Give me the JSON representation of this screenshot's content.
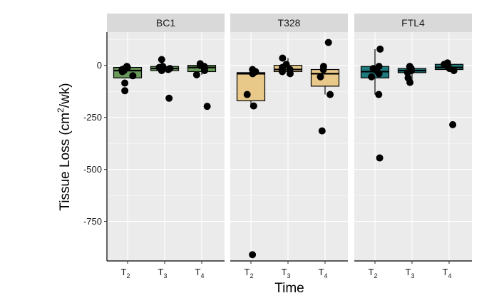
{
  "chart_data": {
    "type": "boxplot",
    "xlabel": "Time",
    "ylabel_main": "Tissue Loss (cm",
    "ylabel_sup": "2",
    "ylabel_tail": "/wk)",
    "ylim": [
      -940,
      160
    ],
    "yticks": [
      0,
      -250,
      -500,
      -750
    ],
    "ytick_labels": [
      "0",
      "-250",
      "-500",
      "-750"
    ],
    "categories": [
      {
        "base": "T",
        "sub": "2"
      },
      {
        "base": "T",
        "sub": "3"
      },
      {
        "base": "T",
        "sub": "4"
      }
    ],
    "panels": [
      {
        "name": "BC1",
        "color": "#6a9a5a",
        "boxes": [
          {
            "q1": -60,
            "median": -25,
            "q3": -10,
            "low": -60,
            "high": -5,
            "points": [
              -5,
              -10,
              -15,
              -20,
              -25,
              -30,
              -50,
              -85,
              -122
            ]
          },
          {
            "q1": -25,
            "median": -15,
            "q3": -5,
            "low": -25,
            "high": 0,
            "points": [
              28,
              -5,
              -10,
              -15,
              -20,
              -25,
              -158
            ]
          },
          {
            "q1": -30,
            "median": -10,
            "q3": 0,
            "low": -45,
            "high": 10,
            "points": [
              8,
              0,
              -5,
              -15,
              -25,
              -45,
              -197
            ]
          }
        ]
      },
      {
        "name": "T328",
        "color": "#e8c98a",
        "boxes": [
          {
            "q1": -170,
            "median": -40,
            "q3": -35,
            "low": -195,
            "high": -20,
            "points": [
              -20,
              -30,
              -40,
              -140,
              -195,
              -910
            ]
          },
          {
            "q1": -30,
            "median": -20,
            "q3": 0,
            "low": -40,
            "high": 35,
            "points": [
              35,
              5,
              -10,
              -20,
              -30,
              -40
            ]
          },
          {
            "q1": -100,
            "median": -40,
            "q3": -20,
            "low": -140,
            "high": -5,
            "points": [
              110,
              -5,
              -20,
              -55,
              -140,
              -315
            ]
          }
        ]
      },
      {
        "name": "FTL4",
        "color": "#1f7a7d",
        "boxes": [
          {
            "q1": -60,
            "median": -30,
            "q3": -5,
            "low": -140,
            "high": 78,
            "points": [
              78,
              -5,
              -15,
              -25,
              -40,
              -55,
              -140,
              -445
            ]
          },
          {
            "q1": -35,
            "median": -25,
            "q3": -15,
            "low": -82,
            "high": -5,
            "points": [
              -5,
              -15,
              -25,
              -35,
              -60,
              -82
            ]
          },
          {
            "q1": -20,
            "median": -10,
            "q3": 5,
            "low": -25,
            "high": 12,
            "points": [
              12,
              5,
              -5,
              -15,
              -25,
              -285
            ]
          }
        ]
      }
    ]
  }
}
